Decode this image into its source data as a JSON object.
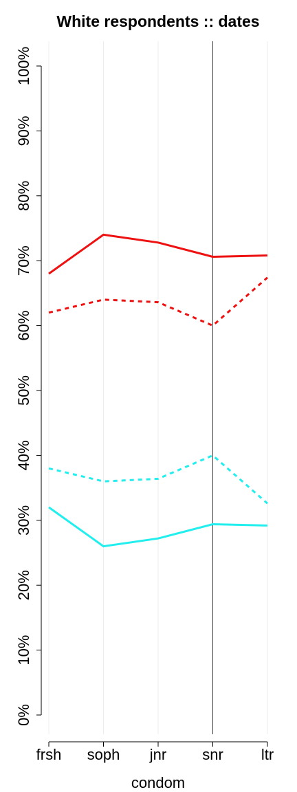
{
  "chart_data": {
    "type": "line",
    "title": "White respondents :: dates",
    "xlabel": "condom",
    "ylabel": "",
    "categories": [
      "frsh",
      "soph",
      "jnr",
      "snr",
      "ltr"
    ],
    "ylim": [
      0,
      100
    ],
    "yticks": [
      0,
      10,
      20,
      30,
      40,
      50,
      60,
      70,
      80,
      90,
      100
    ],
    "ytick_labels": [
      "0%",
      "10%",
      "20%",
      "30%",
      "40%",
      "50%",
      "60%",
      "70%",
      "80%",
      "90%",
      "100%"
    ],
    "grid": "vertical",
    "reference_line_category": "snr",
    "series": [
      {
        "color": "#ee1111",
        "dash": "solid",
        "values": [
          68.0,
          74.0,
          72.8,
          70.6,
          70.8
        ]
      },
      {
        "color": "#ee1111",
        "dash": "dashed",
        "values": [
          62.0,
          64.0,
          63.6,
          60.0,
          67.4
        ]
      },
      {
        "color": "#22eeee",
        "dash": "dashed",
        "values": [
          38.0,
          36.0,
          36.4,
          40.0,
          32.6
        ]
      },
      {
        "color": "#22eeee",
        "dash": "solid",
        "values": [
          32.0,
          26.0,
          27.2,
          29.4,
          29.2
        ]
      }
    ]
  }
}
